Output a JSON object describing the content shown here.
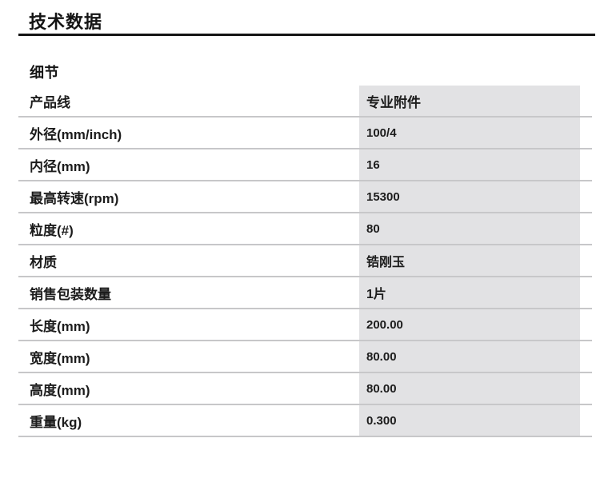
{
  "page": {
    "title": "技术数据",
    "section_heading": "细节"
  },
  "table": {
    "rows": [
      {
        "label": "产品线",
        "value": "专业附件"
      },
      {
        "label": "外径(mm/inch)",
        "value": "100/4"
      },
      {
        "label": "内径(mm)",
        "value": "16"
      },
      {
        "label": "最高转速(rpm)",
        "value": "15300"
      },
      {
        "label": "粒度(#)",
        "value": "80"
      },
      {
        "label": "材质",
        "value": "锆刚玉"
      },
      {
        "label": "销售包装数量",
        "value": "1片"
      },
      {
        "label": "长度(mm)",
        "value": "200.00"
      },
      {
        "label": "宽度(mm)",
        "value": "80.00"
      },
      {
        "label": "高度(mm)",
        "value": "80.00"
      },
      {
        "label": "重量(kg)",
        "value": "0.300"
      }
    ]
  },
  "colors": {
    "value_column_bg": "#e2e2e4",
    "row_divider": "#c7c7c9",
    "title_underline": "#141414",
    "text": "#1c1c1c"
  }
}
